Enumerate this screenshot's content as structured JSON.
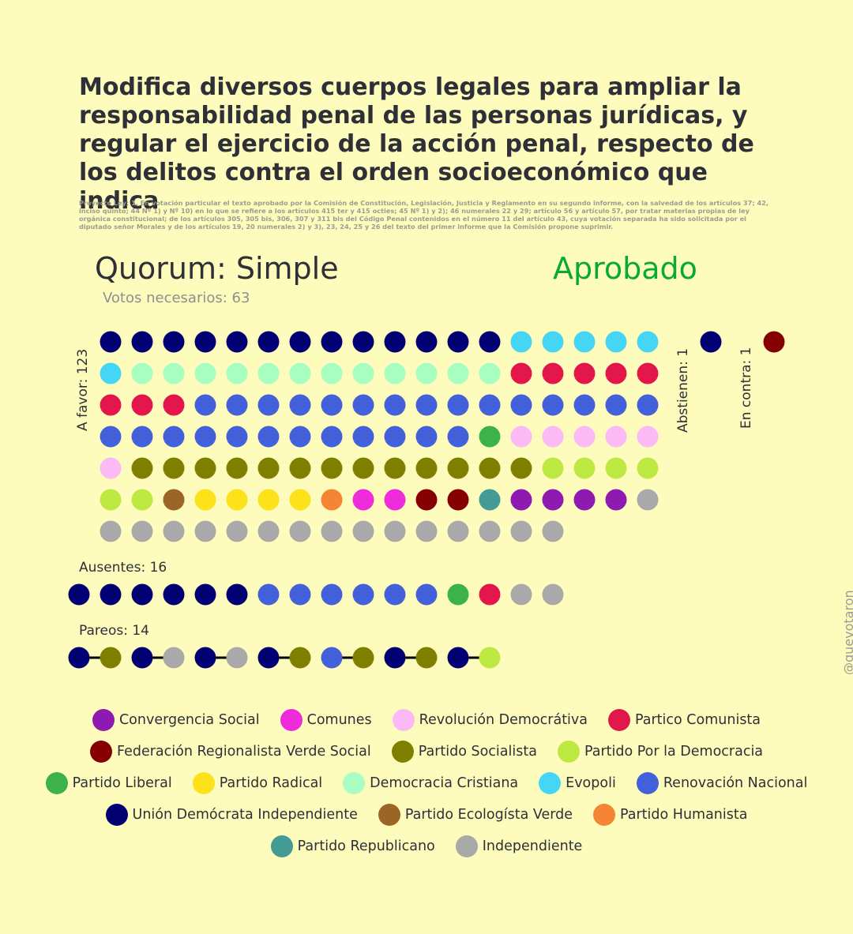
{
  "title": "Modifica diversos cuerpos legales para ampliar la responsabilidad penal de las personas jurídicas, y regular el ejercicio de la acción penal, respecto de los delitos contra el orden socioeconómico que indica",
  "subtitle": "Proyecto Ley: 1. En votación particular el texto aprobado por la Comisión de Constitución, Legislación, Justicia y Reglamento en su segundo informe, con la salvedad de los artículos 37; 42, inciso quinto; 44 Nº 1) y Nº 10) en lo que se refiere a los artículos 415 ter y 415 octies; 45 Nº 1) y 2); 46 numerales 22 y 29; artículo 56 y artículo 57, por tratar materias propias de ley orgánica constitucional; de los artículos 305, 305 bis, 306, 307 y 311 bis del Código Penal contenidos en el número 11 del artículo 43, cuya votación separada ha sido solicitada por el diputado señor Morales y de los artículos 19, 20 numerales 2) y 3), 23, 24, 25 y 26 del texto del primer informe que la Comisión propone suprimir.",
  "quorum": "Quorum: Simple",
  "result": "Aprobado",
  "result_color": "#0aa936",
  "needed": "Votos necesarios: 63",
  "handle": "@quevotaron",
  "colors": {
    "CS": "#8e1ab2",
    "COM": "#ee2cdc",
    "RD": "#fbbaf5",
    "PC": "#e3174c",
    "FRVS": "#850000",
    "PS": "#7f7f00",
    "PPD": "#bee942",
    "PL": "#3cb24a",
    "PR": "#fde11b",
    "DC": "#a8fec1",
    "EVO": "#44d6f4",
    "RN": "#4461dc",
    "UDI": "#010072",
    "PEV": "#9b6526",
    "PH": "#f68435",
    "REP": "#449b95",
    "IND": "#a9a9a9"
  },
  "chart_data": {
    "type": "dot-matrix",
    "quorum": "Simple",
    "votes_needed": 63,
    "outcome": "Aprobado",
    "groups": [
      {
        "key": "favor",
        "label": "A favor: 123",
        "count": 123,
        "rows": [
          [
            "UDI",
            "UDI",
            "UDI",
            "UDI",
            "UDI",
            "UDI",
            "UDI",
            "UDI",
            "UDI",
            "UDI",
            "UDI",
            "UDI",
            "UDI",
            "EVO",
            "EVO",
            "EVO",
            "EVO",
            "EVO"
          ],
          [
            "EVO",
            "DC",
            "DC",
            "DC",
            "DC",
            "DC",
            "DC",
            "DC",
            "DC",
            "DC",
            "DC",
            "DC",
            "DC",
            "PC",
            "PC",
            "PC",
            "PC",
            "PC"
          ],
          [
            "PC",
            "PC",
            "PC",
            "RN",
            "RN",
            "RN",
            "RN",
            "RN",
            "RN",
            "RN",
            "RN",
            "RN",
            "RN",
            "RN",
            "RN",
            "RN",
            "RN",
            "RN"
          ],
          [
            "RN",
            "RN",
            "RN",
            "RN",
            "RN",
            "RN",
            "RN",
            "RN",
            "RN",
            "RN",
            "RN",
            "RN",
            "PL",
            "RD",
            "RD",
            "RD",
            "RD",
            "RD"
          ],
          [
            "RD",
            "PS",
            "PS",
            "PS",
            "PS",
            "PS",
            "PS",
            "PS",
            "PS",
            "PS",
            "PS",
            "PS",
            "PS",
            "PS",
            "PPD",
            "PPD",
            "PPD",
            "PPD"
          ],
          [
            "PPD",
            "PPD",
            "PEV",
            "PR",
            "PR",
            "PR",
            "PR",
            "PH",
            "COM",
            "COM",
            "FRVS",
            "FRVS",
            "REP",
            "CS",
            "CS",
            "CS",
            "CS",
            "IND"
          ],
          [
            "IND",
            "IND",
            "IND",
            "IND",
            "IND",
            "IND",
            "IND",
            "IND",
            "IND",
            "IND",
            "IND",
            "IND",
            "IND",
            "IND",
            "IND"
          ]
        ]
      },
      {
        "key": "abstienen",
        "label": "Abstienen: 1",
        "count": 1,
        "members": [
          "UDI"
        ]
      },
      {
        "key": "contra",
        "label": "En contra: 1",
        "count": 1,
        "members": [
          "FRVS"
        ]
      },
      {
        "key": "ausentes",
        "label": "Ausentes: 16",
        "count": 16,
        "members": [
          "UDI",
          "UDI",
          "UDI",
          "UDI",
          "UDI",
          "UDI",
          "RN",
          "RN",
          "RN",
          "RN",
          "RN",
          "RN",
          "PL",
          "PC",
          "IND",
          "IND"
        ]
      },
      {
        "key": "pareos",
        "label": "Pareos: 14",
        "count": 14,
        "pairs": [
          [
            "UDI",
            "PS"
          ],
          [
            "UDI",
            "IND"
          ],
          [
            "UDI",
            "IND"
          ],
          [
            "UDI",
            "PS"
          ],
          [
            "RN",
            "PS"
          ],
          [
            "UDI",
            "PS"
          ],
          [
            "UDI",
            "PPD"
          ]
        ]
      }
    ]
  },
  "legend": {
    "rows": [
      [
        {
          "key": "CS",
          "label": "Convergencia Social"
        },
        {
          "key": "COM",
          "label": "Comunes"
        },
        {
          "key": "RD",
          "label": "Revolución Democrátiva"
        },
        {
          "key": "PC",
          "label": "Partico Comunista"
        }
      ],
      [
        {
          "key": "FRVS",
          "label": "Federación Regionalista Verde Social"
        },
        {
          "key": "PS",
          "label": "Partido Socialista"
        },
        {
          "key": "PPD",
          "label": "Partido Por la Democracia"
        }
      ],
      [
        {
          "key": "PL",
          "label": "Partido Liberal"
        },
        {
          "key": "PR",
          "label": "Partido Radical"
        },
        {
          "key": "DC",
          "label": "Democracia Cristiana"
        },
        {
          "key": "EVO",
          "label": "Evopoli"
        },
        {
          "key": "RN",
          "label": "Renovación Nacional"
        }
      ],
      [
        {
          "key": "UDI",
          "label": "Unión Demócrata Independiente"
        },
        {
          "key": "PEV",
          "label": "Partido Ecologísta Verde"
        },
        {
          "key": "PH",
          "label": "Partido Humanista"
        }
      ],
      [
        {
          "key": "REP",
          "label": "Partido Republicano"
        },
        {
          "key": "IND",
          "label": "Independiente"
        }
      ]
    ]
  }
}
